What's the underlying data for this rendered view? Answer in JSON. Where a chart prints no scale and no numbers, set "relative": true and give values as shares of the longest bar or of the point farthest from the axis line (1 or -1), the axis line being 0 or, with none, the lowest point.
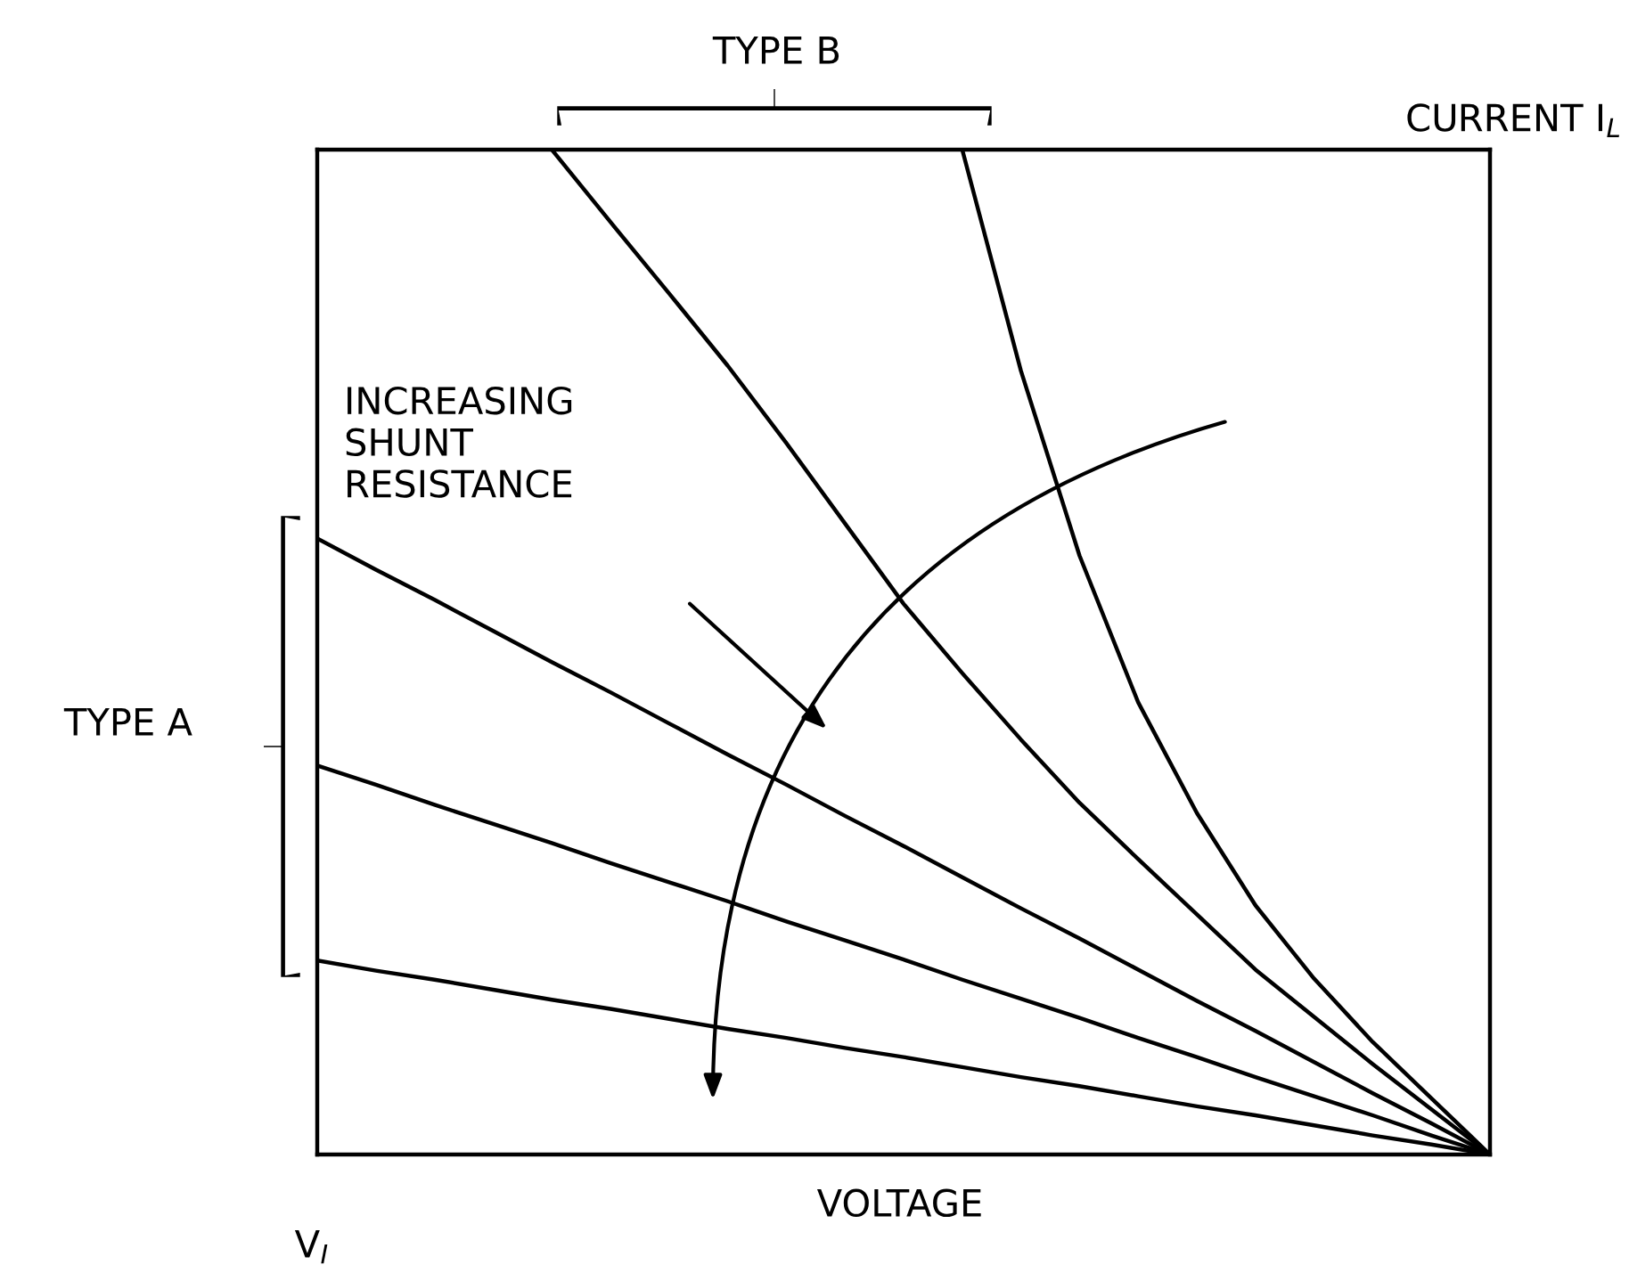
{
  "chart_data": {
    "type": "line",
    "relative": true,
    "xlabel": "VOLTAGE",
    "ylabel": "CURRENT I$_{L}$",
    "annotations": [
      "TYPE B",
      "INCREASING\nSHUNT\nRESISTANCE",
      "TYPE A",
      "V$_{I}$"
    ],
    "legend": false,
    "marker": "none",
    "line_style": "solid",
    "categories": [
      null,
      null,
      null,
      null,
      null,
      null,
      null,
      null,
      null,
      null,
      null,
      null,
      null,
      null,
      null,
      null,
      null,
      null,
      null,
      null,
      null
    ],
    "series": [
      {
        "color": "#000000",
        "values": [
          null,
          null,
          null,
          null,
          1.0,
          0.928,
          0.857,
          0.785,
          0.708,
          0.628,
          0.548,
          0.479,
          0.413,
          0.35,
          0.294,
          0.239,
          0.184,
          0.137,
          0.09,
          0.045,
          0.0
        ]
      },
      {
        "color": "#000000",
        "values": [
          null,
          null,
          null,
          null,
          null,
          null,
          null,
          null,
          null,
          null,
          null,
          1.0,
          0.78,
          0.596,
          0.45,
          0.34,
          0.248,
          0.175,
          0.112,
          0.056,
          0.0
        ]
      },
      {
        "color": "#000000",
        "values": [
          0.613,
          0.582,
          0.552,
          0.521,
          0.49,
          0.46,
          0.429,
          0.398,
          0.368,
          0.337,
          0.307,
          0.276,
          0.245,
          0.215,
          0.184,
          0.153,
          0.123,
          0.092,
          0.061,
          0.031,
          0.0
        ]
      },
      {
        "color": "#000000",
        "values": [
          0.387,
          0.368,
          0.348,
          0.329,
          0.31,
          0.29,
          0.271,
          0.252,
          0.232,
          0.213,
          0.194,
          0.174,
          0.155,
          0.136,
          0.116,
          0.097,
          0.077,
          0.058,
          0.039,
          0.019,
          0.0
        ]
      },
      {
        "color": "#000000",
        "values": [
          0.193,
          0.183,
          0.174,
          0.164,
          0.154,
          0.145,
          0.135,
          0.125,
          0.116,
          0.106,
          0.097,
          0.087,
          0.077,
          0.068,
          0.058,
          0.048,
          0.039,
          0.029,
          0.019,
          0.01,
          0.0
        ]
      }
    ]
  }
}
